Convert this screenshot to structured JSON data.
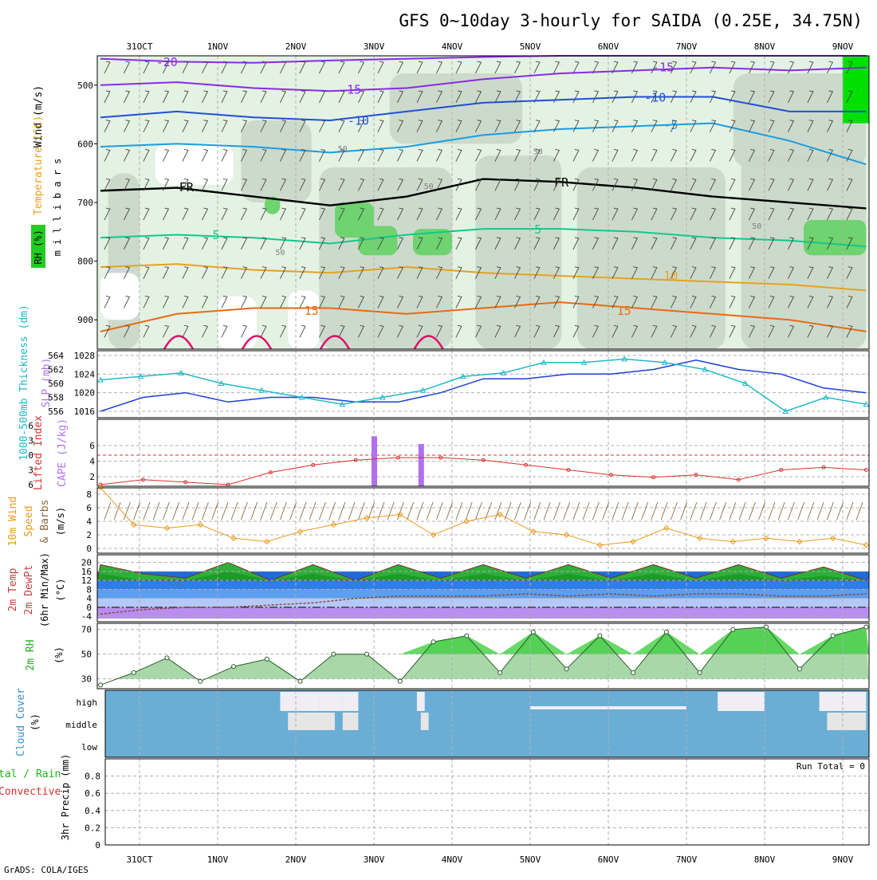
{
  "title": "GFS 0~10day 3-hourly for SAIDA (0.25E, 34.75N)",
  "credit": "GrADS: COLA/IGES",
  "colors": {
    "frame": "#000000",
    "grid": "#b0b0b0",
    "rh_light": "#e3f2e3",
    "rh_mid": "#c8d6c8",
    "rh_dark": "#6fd36f",
    "rh_brightest": "#00e000",
    "temp_purple": "#8a2be2",
    "temp_blue": "#1f4fd6",
    "temp_cyan": "#1a9de0",
    "temp_teal": "#10c98a",
    "temp_orange": "#e8a020",
    "temp_darkorange": "#e86a10",
    "temp_magenta": "#e0106a",
    "slp": "#1f3fd6",
    "thickness": "#20b8c8",
    "lifted_index": "#d83030",
    "cape": "#b070f0",
    "wind": "#e89a20",
    "barb": "#8a6a40",
    "cloud": "#6aaed6",
    "cloud_gap": "#f0eef4",
    "cloud_gap_mid": "#e6e6e6"
  },
  "date_axis": {
    "labels": [
      "31OCT",
      "1NOV",
      "2NOV",
      "3NOV",
      "4NOV",
      "5NOV",
      "6NOV",
      "7NOV",
      "8NOV",
      "9NOV"
    ]
  },
  "chart_data": [
    {
      "panel": "upper-air",
      "type": "heatmap",
      "ylabel": "m i l l i b a r s",
      "yticks": [
        500,
        600,
        700,
        800,
        900
      ],
      "ylim": [
        450,
        950
      ],
      "legend_labels": [
        "Wind (m/s)",
        "Temperature (°C)",
        "RH (%)"
      ],
      "isotherms": [
        {
          "label": "-20",
          "color": "purple",
          "mb": [
            455,
            460,
            462,
            458,
            455,
            452,
            450,
            450,
            450,
            450,
            450
          ]
        },
        {
          "label": "-15",
          "color": "purple",
          "mb": [
            500,
            495,
            505,
            510,
            505,
            490,
            480,
            475,
            470,
            475,
            470
          ]
        },
        {
          "label": "-10",
          "color": "blue",
          "mb": [
            555,
            545,
            555,
            560,
            545,
            530,
            525,
            520,
            520,
            545,
            545
          ]
        },
        {
          "label": "-5",
          "color": "cyan",
          "mb": [
            605,
            600,
            605,
            615,
            605,
            585,
            575,
            570,
            565,
            595,
            635
          ]
        },
        {
          "label": "FR",
          "color": "black",
          "mb": [
            680,
            675,
            690,
            705,
            690,
            660,
            665,
            675,
            690,
            700,
            710
          ]
        },
        {
          "label": "5",
          "color": "teal",
          "mb": [
            760,
            755,
            760,
            770,
            755,
            745,
            745,
            750,
            760,
            765,
            775
          ]
        },
        {
          "label": "10",
          "color": "orange",
          "mb": [
            810,
            805,
            815,
            820,
            810,
            820,
            825,
            830,
            835,
            840,
            850
          ]
        },
        {
          "label": "15",
          "color": "darkorange",
          "mb": [
            920,
            890,
            880,
            880,
            890,
            880,
            870,
            880,
            890,
            900,
            920
          ]
        }
      ],
      "isotherm_labels_shown": [
        "-20",
        "-15",
        "-15",
        "-10",
        "-10",
        "-5",
        "FR",
        "FR",
        "5",
        "5",
        "10",
        "15",
        "15"
      ],
      "rh_contour_labels": [
        "50",
        "50",
        "50",
        "50",
        "50"
      ]
    },
    {
      "panel": "slp-thickness",
      "type": "line",
      "y_left_label": "1000-500mb Thickness (dm)",
      "y_right_label": "SLP (mb)",
      "y_left_ticks": [
        556,
        558,
        560,
        562,
        564
      ],
      "y_right_ticks": [
        1016,
        1020,
        1024,
        1028
      ],
      "series": [
        {
          "name": "SLP (mb)",
          "axis": "right",
          "values": [
            1016,
            1019,
            1020,
            1018,
            1019,
            1019,
            1018,
            1018,
            1020,
            1023,
            1023,
            1024,
            1024,
            1025,
            1027,
            1025,
            1024,
            1021,
            1020
          ]
        },
        {
          "name": "1000-500mb Thickness (dm)",
          "axis": "left",
          "values": [
            560.5,
            561,
            561.5,
            560,
            559,
            558,
            557,
            558,
            559,
            561,
            561.5,
            563,
            563,
            563.5,
            563,
            562,
            560,
            556,
            558,
            557
          ]
        }
      ]
    },
    {
      "panel": "stability",
      "type": "bar",
      "y_left_label": "Lifted Index",
      "y_right_label": "CAPE (J/kg)",
      "y_left_ticks": [
        -6,
        -3,
        0,
        3,
        6
      ],
      "y_right_ticks": [
        2,
        4,
        6
      ],
      "series": [
        {
          "name": "Lifted Index",
          "values": [
            6,
            5,
            5.5,
            6,
            3.5,
            2,
            1,
            0.5,
            0.5,
            1,
            2,
            3,
            4,
            4.5,
            4,
            5,
            3,
            2.5,
            3
          ]
        },
        {
          "name": "CAPE (J/kg)",
          "bars": [
            {
              "day": 3.0,
              "value": 7.2
            },
            {
              "day": 3.6,
              "value": 6.2
            }
          ]
        }
      ],
      "zero_line": 0
    },
    {
      "panel": "wind",
      "type": "line",
      "ylabel": "10m Wind Speed & Barbs (m/s)",
      "yticks": [
        0,
        2,
        4,
        6,
        8
      ],
      "ylim": [
        0,
        9
      ],
      "series": [
        {
          "name": "10m Wind Speed",
          "values": [
            9,
            3.5,
            3,
            3.5,
            1.5,
            1,
            2.5,
            3.5,
            4.5,
            5,
            2,
            4,
            5,
            2.5,
            2,
            0.5,
            1,
            3,
            1.5,
            1,
            1.5,
            1,
            1.5,
            0.5
          ]
        }
      ]
    },
    {
      "panel": "temperature",
      "type": "area",
      "ylabel": "2m Temp 2m DewPt (6hr Min/Max) (°C)",
      "yticks": [
        -4,
        0,
        4,
        8,
        12,
        16,
        20
      ],
      "ylim": [
        -5,
        22
      ],
      "series": [
        {
          "name": "2m Temp",
          "values": [
            19,
            15,
            13,
            20,
            12,
            19,
            12,
            19,
            13,
            19,
            13,
            19,
            13,
            19,
            13,
            19,
            13,
            18,
            12
          ]
        },
        {
          "name": "2m DewPt",
          "values": [
            -3,
            -1,
            0,
            0,
            1,
            2,
            4,
            5,
            5,
            5,
            6,
            5,
            6,
            5,
            6,
            6,
            5,
            5,
            6
          ]
        }
      ]
    },
    {
      "panel": "humidity",
      "type": "area",
      "ylabel": "2m RH (%)",
      "yticks": [
        30,
        50,
        70
      ],
      "ylim": [
        22,
        75
      ],
      "series": [
        {
          "name": "2m RH",
          "values": [
            25,
            35,
            47,
            28,
            40,
            46,
            28,
            50,
            50,
            28,
            60,
            65,
            35,
            68,
            38,
            65,
            35,
            68,
            35,
            70,
            72,
            38,
            65,
            72
          ]
        }
      ]
    },
    {
      "panel": "cloud",
      "type": "heatmap",
      "ylabel": "Cloud Cover (%)",
      "levels": [
        "high",
        "middle",
        "low"
      ]
    },
    {
      "panel": "precip",
      "type": "bar",
      "ylabel": "3hr Precip (mm)",
      "legend_labels": [
        "Total / Rain",
        "Convective"
      ],
      "yticks": [
        0,
        0.2,
        0.4,
        0.6,
        0.8
      ],
      "ylim": [
        0,
        1
      ],
      "annotation": "Run Total = 0",
      "values": []
    }
  ],
  "labels": {
    "p1_wind": "Wind (m/s)",
    "p1_temp": "Temperature (°C)",
    "p1_rh": "RH (%)",
    "p1_mb": "m i l l i b a r s",
    "p2_thick": "1000-500mb Thickness (dm)",
    "p2_slp": "SLP (mb)",
    "p3_li": "Lifted Index",
    "p3_cape": "CAPE (J/kg)",
    "p4_line1": "10m Wind",
    "p4_line2": "Speed",
    "p4_line3": "& Barbs",
    "p4_unit": "(m/s)",
    "p5_line1": "2m Temp",
    "p5_line2": "2m DewPt",
    "p5_line3": "(6hr Min/Max)",
    "p5_unit": "(°C)",
    "p6_line1": "2m RH",
    "p6_unit": "(%)",
    "p7_line1": "Cloud Cover",
    "p7_unit": "(%)",
    "p8_line1": "tal / Rain",
    "p8_line2": "Convective",
    "p8_line3": "3hr Precip (mm)"
  }
}
